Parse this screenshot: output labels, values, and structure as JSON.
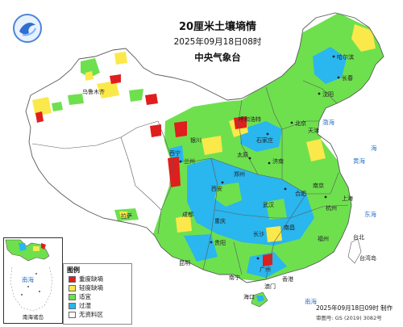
{
  "header": {
    "title": "20厘米土壤墒情",
    "datetime": "2025年09月18日08时",
    "agency": "中央气象台"
  },
  "legend": {
    "title": "图例",
    "items": [
      {
        "label": "重度缺墒",
        "color": "#e01e1e"
      },
      {
        "label": "轻度缺墒",
        "color": "#fbe84a"
      },
      {
        "label": "适宜",
        "color": "#6ee04e"
      },
      {
        "label": "过湿",
        "color": "#2ab6ee"
      },
      {
        "label": "无资料区",
        "color": "#ffffff"
      }
    ]
  },
  "colors": {
    "sea": "#ffffff",
    "border": "#5a5a5a",
    "no_data": "#ffffff"
  },
  "places": {
    "beijing": "北京",
    "tianjin": "天津",
    "shijiazhuang": "石家庄",
    "taiyuan": "太原",
    "jinan": "济南",
    "zhengzhou": "郑州",
    "xian": "西安",
    "lanzhou": "兰州",
    "xining": "西宁",
    "yinchuan": "银川",
    "hohhot": "呼和浩特",
    "harbin": "哈尔滨",
    "changchun": "长春",
    "shenyang": "沈阳",
    "urumqi": "乌鲁木齐",
    "lhasa": "拉萨",
    "chengdu": "成都",
    "chongqing": "重庆",
    "guiyang": "贵阳",
    "kunming": "昆明",
    "nanning": "南宁",
    "guangzhou": "广州",
    "hongkong": "香港",
    "macau": "澳门",
    "haikou": "海口",
    "fuzhou": "福州",
    "taibei": "台北",
    "taiwan": "台湾岛",
    "nanchang": "南昌",
    "changsha": "长沙",
    "wuhan": "武汉",
    "hefei": "合肥",
    "nanjing": "南京",
    "shanghai": "上海",
    "hangzhou": "杭州",
    "bohai": "渤海",
    "huanghai": "黄海",
    "donghai": "东海",
    "nanhai": "南海",
    "hai": "海"
  },
  "inset": {
    "caption": "南海诸岛",
    "sea_label": "南海"
  },
  "footer": {
    "issued": "2025年09月18日09时 制作",
    "review_no": "审图号: GS (2019) 3082号"
  }
}
